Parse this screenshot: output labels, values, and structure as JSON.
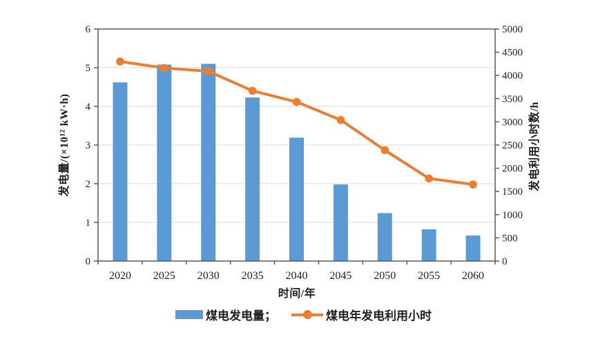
{
  "chart_data": {
    "type": "bar+line combo",
    "categories": [
      "2020",
      "2025",
      "2030",
      "2035",
      "2040",
      "2045",
      "2050",
      "2055",
      "2060"
    ],
    "series": [
      {
        "name": "煤电发电量",
        "type": "bar",
        "axis": "left",
        "color": "#5b9bd5",
        "values": [
          4.62,
          5.08,
          5.1,
          4.23,
          3.19,
          1.98,
          1.24,
          0.82,
          0.66
        ]
      },
      {
        "name": "煤电年发电利用小时",
        "type": "line",
        "axis": "right",
        "color": "#ed7d31",
        "values": [
          4300,
          4160,
          4090,
          3670,
          3430,
          3040,
          2390,
          1780,
          1650
        ]
      }
    ],
    "left_axis": {
      "label": "发电量/(×10¹² kW·h)",
      "min": 0,
      "max": 6,
      "step": 1,
      "ticks": [
        0,
        1,
        2,
        3,
        4,
        5,
        6
      ]
    },
    "right_axis": {
      "label": "发电利用小时数/h",
      "min": 0,
      "max": 5000,
      "step": 500,
      "ticks": [
        0,
        500,
        1000,
        1500,
        2000,
        2500,
        3000,
        3500,
        4000,
        4500,
        5000
      ]
    },
    "x_axis": {
      "label": "时间/年"
    },
    "grid": true,
    "legend_position": "bottom",
    "legend": [
      {
        "label": "煤电发电量；",
        "type": "bar",
        "color": "#5b9bd5"
      },
      {
        "label": "煤电年发电利用小时",
        "type": "line",
        "color": "#ed7d31"
      }
    ]
  },
  "colors": {
    "bar": "#5b9bd5",
    "line": "#ed7d31",
    "frame": "#595959",
    "gridline": "#d9d9d9",
    "text": "#1f1f1f",
    "background": "#ffffff"
  }
}
